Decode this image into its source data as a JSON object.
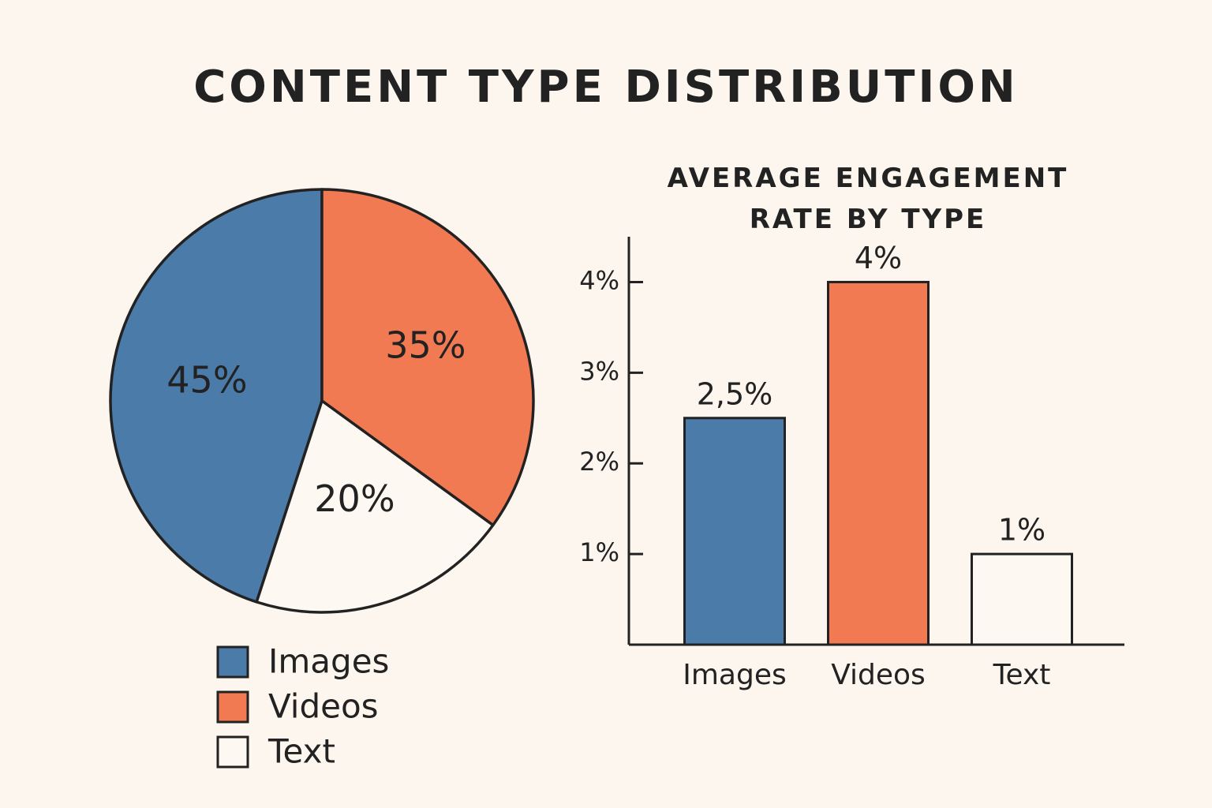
{
  "chart_data": [
    {
      "type": "pie",
      "title": "CONTENT TYPE DISTRIBUTION",
      "categories": [
        "Images",
        "Videos",
        "Text"
      ],
      "values": [
        45,
        35,
        20
      ],
      "value_labels": [
        "45%",
        "35%",
        "20%"
      ],
      "colors": [
        "#4b7ba9",
        "#f27a52",
        "#fdf8f1"
      ],
      "legend": "bottom"
    },
    {
      "type": "bar",
      "title": "AVERAGE ENGAGEMENT RATE BY TYPE",
      "categories": [
        "Images",
        "Videos",
        "Text"
      ],
      "values": [
        2.5,
        4,
        1
      ],
      "value_labels": [
        "2,5%",
        "4%",
        "1%"
      ],
      "colors": [
        "#4b7ba9",
        "#f27a52",
        "#fdf8f1"
      ],
      "ylim": [
        0,
        4.5
      ],
      "yticks": [
        {
          "value": 1,
          "label": "1%"
        },
        {
          "value": 2,
          "label": "2%"
        },
        {
          "value": 3,
          "label": "3%"
        },
        {
          "value": 4,
          "label": "4%"
        }
      ]
    }
  ]
}
